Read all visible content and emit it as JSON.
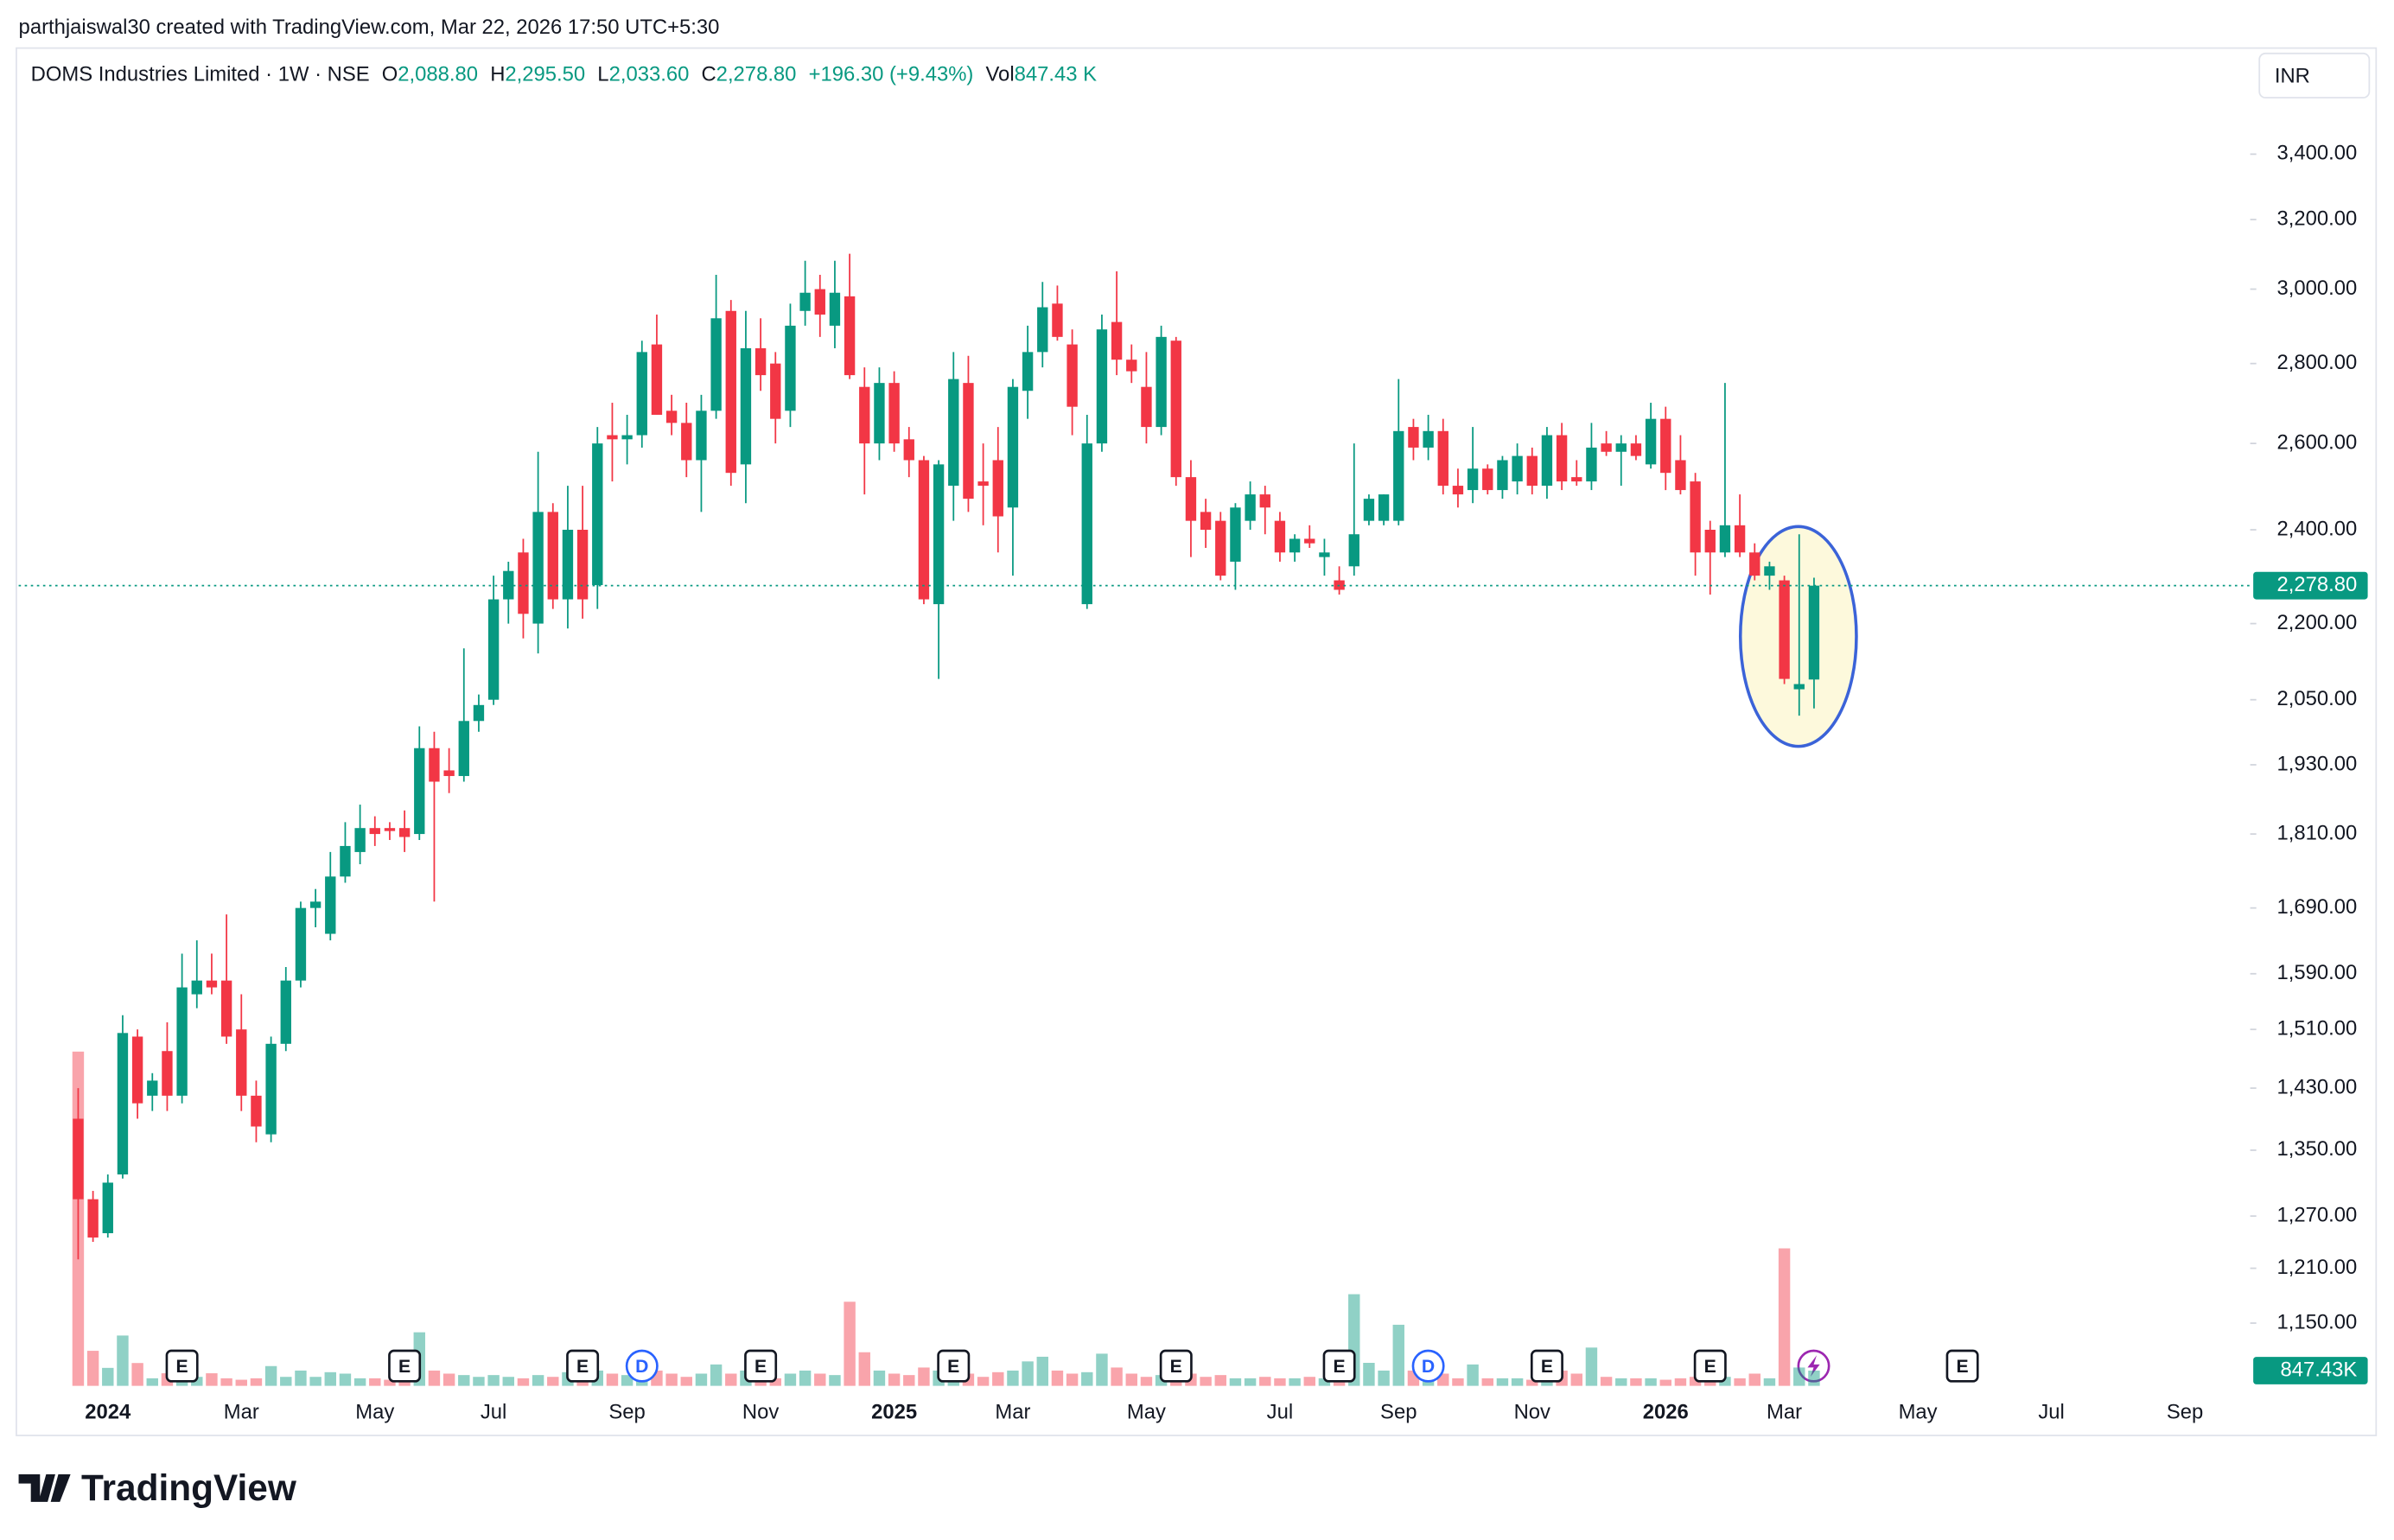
{
  "chart_data": {
    "type": "candlestick",
    "credit": "parthjaiswal30 created with TradingView.com, Mar 22, 2026 17:50 UTC+5:30",
    "legend": {
      "symbol": "DOMS Industries Limited · 1W · NSE",
      "o_label": "O",
      "open": "2,088.80",
      "h_label": "H",
      "high": "2,295.50",
      "l_label": "L",
      "low": "2,033.60",
      "c_label": "C",
      "close": "2,278.80",
      "change": "+196.30 (+9.43%)",
      "vol_label": "Vol",
      "volume": "847.43 K"
    },
    "currency": "INR",
    "last_price_label": "2,278.80",
    "last_volume_label": "847.43K",
    "brand": "TradingView",
    "up_color": "#089981",
    "down_color": "#f23645",
    "log_scale": true,
    "ylim": [
      1085,
      3593
    ],
    "yticks": [
      {
        "value": 3400,
        "label": "3,400.00"
      },
      {
        "value": 3200,
        "label": "3,200.00"
      },
      {
        "value": 3000,
        "label": "3,000.00"
      },
      {
        "value": 2800,
        "label": "2,800.00"
      },
      {
        "value": 2600,
        "label": "2,600.00"
      },
      {
        "value": 2400,
        "label": "2,400.00"
      },
      {
        "value": 2200,
        "label": "2,200.00"
      },
      {
        "value": 2050,
        "label": "2,050.00"
      },
      {
        "value": 1930,
        "label": "1,930.00"
      },
      {
        "value": 1810,
        "label": "1,810.00"
      },
      {
        "value": 1690,
        "label": "1,690.00"
      },
      {
        "value": 1590,
        "label": "1,590.00"
      },
      {
        "value": 1510,
        "label": "1,510.00"
      },
      {
        "value": 1430,
        "label": "1,430.00"
      },
      {
        "value": 1350,
        "label": "1,350.00"
      },
      {
        "value": 1270,
        "label": "1,270.00"
      },
      {
        "value": 1210,
        "label": "1,210.00"
      },
      {
        "value": 1150,
        "label": "1,150.00"
      }
    ],
    "categories": [
      null,
      null,
      "2024",
      null,
      null,
      null,
      null,
      null,
      null,
      null,
      null,
      "Mar",
      null,
      null,
      null,
      null,
      null,
      null,
      null,
      null,
      "May",
      null,
      null,
      null,
      null,
      null,
      null,
      null,
      "Jul",
      null,
      null,
      null,
      null,
      null,
      null,
      null,
      null,
      "Sep",
      null,
      null,
      null,
      null,
      null,
      null,
      null,
      null,
      "Nov",
      null,
      null,
      null,
      null,
      null,
      null,
      null,
      null,
      "2025",
      null,
      null,
      null,
      null,
      null,
      null,
      null,
      "Mar",
      null,
      null,
      null,
      null,
      null,
      null,
      null,
      null,
      "May",
      null,
      null,
      null,
      null,
      null,
      null,
      null,
      null,
      "Jul",
      null,
      null,
      null,
      null,
      null,
      null,
      null,
      "Sep",
      null,
      null,
      null,
      null,
      null,
      null,
      null,
      null,
      "Nov",
      null,
      null,
      null,
      null,
      null,
      null,
      null,
      null,
      "2026",
      null,
      null,
      null,
      null,
      null,
      null,
      null,
      "Mar",
      null,
      null,
      null,
      null,
      null,
      null,
      null,
      null,
      "May",
      null,
      null,
      null,
      null,
      null,
      null,
      null,
      null,
      "Jul",
      null,
      null,
      null,
      null,
      null,
      null,
      null,
      null,
      "Sep",
      null
    ],
    "events": [
      null,
      null,
      null,
      null,
      null,
      null,
      null,
      "E",
      null,
      null,
      null,
      null,
      null,
      null,
      null,
      null,
      null,
      null,
      null,
      null,
      null,
      null,
      "E",
      null,
      null,
      null,
      null,
      null,
      null,
      null,
      null,
      null,
      null,
      null,
      "E",
      null,
      null,
      null,
      "D",
      null,
      null,
      null,
      null,
      null,
      null,
      null,
      "E",
      null,
      null,
      null,
      null,
      null,
      null,
      null,
      null,
      null,
      null,
      null,
      null,
      "E",
      null,
      null,
      null,
      null,
      null,
      null,
      null,
      null,
      null,
      null,
      null,
      null,
      null,
      null,
      "E",
      null,
      null,
      null,
      null,
      null,
      null,
      null,
      null,
      null,
      null,
      "E",
      null,
      null,
      null,
      null,
      null,
      "D",
      null,
      null,
      null,
      null,
      null,
      null,
      null,
      "E",
      null,
      null,
      null,
      null,
      null,
      null,
      null,
      null,
      null,
      null,
      "E",
      null,
      null,
      null,
      null,
      null,
      null,
      null,
      null,
      null,
      null,
      null,
      null,
      null,
      null,
      null,
      null,
      "E",
      null,
      null,
      null,
      null,
      null,
      null,
      null,
      null,
      null,
      null,
      null,
      null,
      null,
      null,
      null,
      null
    ],
    "open": [
      1390,
      1290,
      1250,
      1320,
      1500,
      1420,
      1480,
      1420,
      1560,
      1580,
      1580,
      1510,
      1420,
      1370,
      1490,
      1580,
      1690,
      1650,
      1740,
      1780,
      1820,
      1820,
      1820,
      1810,
      1960,
      1920,
      1910,
      2010,
      2050,
      2250,
      2350,
      2200,
      2440,
      2250,
      2400,
      2280,
      2620,
      2610,
      2620,
      2850,
      2680,
      2650,
      2560,
      2680,
      2940,
      2550,
      2840,
      2800,
      2680,
      2940,
      3000,
      2900,
      2980,
      2740,
      2600,
      2750,
      2610,
      2560,
      2240,
      2500,
      2750,
      2510,
      2560,
      2450,
      2730,
      2830,
      2960,
      2850,
      2240,
      2600,
      2910,
      2810,
      2740,
      2640,
      2860,
      2520,
      2440,
      2420,
      2330,
      2420,
      2480,
      2420,
      2350,
      2380,
      2340,
      2290,
      2320,
      2420,
      2420,
      2420,
      2640,
      2590,
      2630,
      2500,
      2490,
      2540,
      2490,
      2510,
      2570,
      2500,
      2620,
      2520,
      2510,
      2600,
      2580,
      2600,
      2550,
      2660,
      2560,
      2510,
      2400,
      2350,
      2410,
      2350,
      2300,
      2290,
      2070,
      2088.8,
      null,
      null,
      null,
      null,
      null,
      null,
      null,
      null,
      null,
      null,
      null,
      null,
      null,
      null,
      null,
      null,
      null,
      null,
      null,
      null,
      null,
      null,
      null,
      null,
      null,
      null
    ],
    "high": [
      1430,
      1300,
      1320,
      1530,
      1510,
      1450,
      1520,
      1620,
      1640,
      1620,
      1680,
      1560,
      1440,
      1500,
      1600,
      1700,
      1720,
      1780,
      1830,
      1860,
      1840,
      1830,
      1850,
      2000,
      1990,
      1960,
      2150,
      2060,
      2300,
      2330,
      2380,
      2580,
      2460,
      2500,
      2500,
      2640,
      2700,
      2670,
      2860,
      2930,
      2720,
      2700,
      2720,
      3040,
      2970,
      2940,
      2920,
      2830,
      2960,
      3080,
      3040,
      3080,
      3100,
      2790,
      2790,
      2780,
      2640,
      2570,
      2560,
      2830,
      2820,
      2600,
      2640,
      2760,
      2900,
      3020,
      3010,
      2890,
      2670,
      2930,
      3050,
      2850,
      2830,
      2900,
      2870,
      2560,
      2470,
      2440,
      2460,
      2510,
      2500,
      2440,
      2390,
      2410,
      2380,
      2320,
      2600,
      2480,
      2480,
      2760,
      2660,
      2670,
      2660,
      2540,
      2640,
      2550,
      2570,
      2600,
      2590,
      2640,
      2650,
      2560,
      2650,
      2630,
      2620,
      2620,
      2700,
      2690,
      2620,
      2530,
      2420,
      2750,
      2480,
      2370,
      2330,
      2300,
      2390,
      2295.5,
      null,
      null,
      null,
      null,
      null,
      null,
      null,
      null,
      null,
      null,
      null,
      null,
      null,
      null,
      null,
      null,
      null,
      null,
      null,
      null,
      null,
      null,
      null,
      null,
      null,
      null
    ],
    "low": [
      1220,
      1240,
      1245,
      1315,
      1390,
      1400,
      1400,
      1410,
      1540,
      1560,
      1490,
      1400,
      1360,
      1360,
      1480,
      1570,
      1660,
      1640,
      1730,
      1760,
      1790,
      1800,
      1780,
      1800,
      1700,
      1880,
      1900,
      1990,
      2040,
      2200,
      2170,
      2140,
      2230,
      2190,
      2210,
      2230,
      2510,
      2550,
      2590,
      2670,
      2620,
      2520,
      2440,
      2660,
      2500,
      2460,
      2730,
      2600,
      2640,
      2900,
      2870,
      2840,
      2760,
      2480,
      2560,
      2580,
      2520,
      2240,
      2090,
      2420,
      2440,
      2410,
      2350,
      2300,
      2660,
      2790,
      2860,
      2620,
      2230,
      2580,
      2770,
      2750,
      2600,
      2620,
      2500,
      2340,
      2360,
      2290,
      2270,
      2400,
      2390,
      2330,
      2330,
      2360,
      2300,
      2260,
      2300,
      2410,
      2410,
      2410,
      2560,
      2560,
      2480,
      2450,
      2460,
      2480,
      2470,
      2480,
      2480,
      2470,
      2490,
      2500,
      2490,
      2570,
      2500,
      2560,
      2540,
      2490,
      2480,
      2300,
      2260,
      2340,
      2340,
      2290,
      2270,
      2080,
      2020,
      2033.6,
      null,
      null,
      null,
      null,
      null,
      null,
      null,
      null,
      null,
      null,
      null,
      null,
      null,
      null,
      null,
      null,
      null,
      null,
      null,
      null,
      null,
      null,
      null,
      null,
      null,
      null
    ],
    "close": [
      1290,
      1245,
      1310,
      1505,
      1410,
      1440,
      1420,
      1570,
      1580,
      1570,
      1500,
      1420,
      1380,
      1490,
      1580,
      1690,
      1700,
      1740,
      1790,
      1820,
      1810,
      1815,
      1805,
      1960,
      1900,
      1910,
      2010,
      2040,
      2250,
      2310,
      2220,
      2440,
      2250,
      2400,
      2250,
      2600,
      2610,
      2620,
      2830,
      2670,
      2650,
      2560,
      2680,
      2920,
      2530,
      2840,
      2770,
      2660,
      2900,
      2990,
      2930,
      2990,
      2770,
      2600,
      2750,
      2600,
      2560,
      2250,
      2550,
      2760,
      2470,
      2500,
      2430,
      2740,
      2830,
      2950,
      2870,
      2690,
      2600,
      2890,
      2810,
      2780,
      2640,
      2870,
      2520,
      2420,
      2400,
      2300,
      2450,
      2480,
      2450,
      2350,
      2380,
      2370,
      2350,
      2270,
      2390,
      2470,
      2480,
      2630,
      2590,
      2630,
      2500,
      2480,
      2540,
      2490,
      2560,
      2570,
      2500,
      2620,
      2510,
      2510,
      2590,
      2580,
      2600,
      2570,
      2660,
      2530,
      2490,
      2350,
      2350,
      2410,
      2350,
      2300,
      2320,
      2090,
      2080,
      2278.8,
      null,
      null,
      null,
      null,
      null,
      null,
      null,
      null,
      null,
      null,
      null,
      null,
      null,
      null,
      null,
      null,
      null,
      null,
      null,
      null,
      null,
      null,
      null,
      null,
      null,
      null
    ],
    "volume": [
      18600,
      1950,
      1000,
      2800,
      1270,
      420,
      700,
      850,
      500,
      700,
      420,
      340,
      420,
      1100,
      500,
      850,
      500,
      760,
      680,
      420,
      420,
      340,
      680,
      2980,
      850,
      680,
      600,
      500,
      600,
      500,
      420,
      600,
      500,
      760,
      500,
      850,
      680,
      600,
      1190,
      850,
      680,
      500,
      680,
      1190,
      680,
      850,
      500,
      420,
      680,
      850,
      680,
      600,
      4680,
      1870,
      850,
      680,
      600,
      1020,
      850,
      850,
      680,
      500,
      760,
      850,
      1360,
      1620,
      850,
      680,
      760,
      1790,
      1020,
      680,
      500,
      600,
      850,
      680,
      500,
      600,
      420,
      420,
      500,
      420,
      420,
      500,
      420,
      680,
      5100,
      1280,
      850,
      3400,
      850,
      500,
      680,
      420,
      1190,
      420,
      420,
      420,
      340,
      500,
      850,
      680,
      2130,
      500,
      420,
      420,
      420,
      340,
      420,
      500,
      340,
      500,
      420,
      680,
      420,
      7650,
      1020,
      847.43,
      null,
      null,
      null,
      null,
      null,
      null,
      null,
      null,
      null,
      null,
      null,
      null,
      null,
      null,
      null,
      null,
      null,
      null,
      null,
      null,
      null,
      null,
      null,
      null,
      null,
      null
    ]
  }
}
